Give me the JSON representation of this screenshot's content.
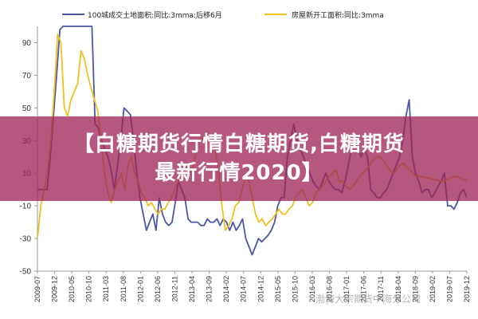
{
  "banner": {
    "line1": "【白糖期货行情白糖期货,白糖期货",
    "line2": "最新行情2020】"
  },
  "watermark": "渤海大宗期货中海分公司",
  "colors": {
    "series1": "#4a56a6",
    "series2": "#f0c020",
    "axis": "#999999",
    "banner": "#a0285a"
  },
  "chart_data": {
    "type": "line",
    "title": "",
    "xlabel": "",
    "ylabel": "",
    "ylim": [
      -50,
      100
    ],
    "yticks": [
      90,
      70,
      50,
      30,
      10,
      -10,
      -30,
      -50
    ],
    "grid": false,
    "legend_position": "top",
    "x_tick_labels": [
      "2009-07",
      "2009-12",
      "2010-05",
      "2010-10",
      "2011-03",
      "2011-08",
      "2012-01",
      "2012-06",
      "2012-11",
      "2013-04",
      "2013-09",
      "2014-02",
      "2014-07",
      "2014-12",
      "2015-05",
      "2015-10",
      "2016-03",
      "2016-08",
      "2017-01",
      "2017-06",
      "2017-11",
      "2018-04",
      "2018-09",
      "2019-02",
      "2019-07",
      "2019-12"
    ],
    "series": [
      {
        "name": "100城成交土地面积:同比:3mma:后移6月",
        "color": "#4a56a6",
        "values": [
          0,
          0,
          0,
          0,
          20,
          45,
          70,
          98,
          100,
          100,
          100,
          100,
          100,
          100,
          100,
          100,
          100,
          100,
          40,
          38,
          30,
          25,
          20,
          12,
          0,
          15,
          30,
          50,
          48,
          46,
          30,
          10,
          -5,
          -15,
          -25,
          -20,
          -15,
          -25,
          -5,
          -15,
          -20,
          -22,
          -20,
          -8,
          5,
          0,
          -5,
          -18,
          -20,
          -20,
          -20,
          -22,
          -22,
          -18,
          -20,
          -20,
          -18,
          -22,
          -18,
          -20,
          -25,
          -20,
          -25,
          -22,
          -18,
          -30,
          -35,
          -40,
          -35,
          -30,
          -32,
          -30,
          -28,
          -25,
          -20,
          -10,
          -5,
          -5,
          20,
          30,
          40,
          30,
          25,
          20,
          15,
          10,
          5,
          2,
          0,
          5,
          10,
          5,
          2,
          0,
          0,
          -2,
          5,
          15,
          25,
          30,
          25,
          20,
          25,
          20,
          0,
          -2,
          -5,
          -5,
          -2,
          0,
          5,
          10,
          15,
          20,
          30,
          45,
          55,
          20,
          10,
          5,
          -2,
          0,
          0,
          -5,
          -2,
          2,
          5,
          10,
          -10,
          -10,
          -12,
          -8,
          -2,
          0,
          -5
        ]
      },
      {
        "name": "房屋新开工面积:同比:3mma",
        "color": "#f0c020",
        "values": [
          -30,
          -10,
          0,
          10,
          30,
          60,
          95,
          90,
          50,
          45,
          55,
          60,
          65,
          85,
          80,
          70,
          62,
          55,
          48,
          30,
          10,
          -2,
          -8,
          0,
          5,
          10,
          0,
          15,
          20,
          10,
          5,
          -2,
          -5,
          -10,
          -8,
          -12,
          -15,
          -12,
          -12,
          -8,
          -5,
          0,
          5,
          10,
          15,
          12,
          10,
          20,
          30,
          32,
          28,
          30,
          28,
          25,
          10,
          -10,
          -25,
          -22,
          -18,
          -10,
          -8,
          0,
          8,
          5,
          -5,
          -15,
          -20,
          -18,
          -22,
          -20,
          -18,
          -15,
          -12,
          -15,
          -15,
          -12,
          -10,
          -5,
          -2,
          0,
          -5,
          -10,
          -8,
          -2,
          0,
          2,
          5,
          8,
          10,
          12,
          5,
          5,
          2,
          0,
          2,
          5,
          8,
          10,
          12,
          15,
          18,
          20,
          20,
          18,
          15,
          12,
          10,
          12,
          15,
          16,
          14,
          12,
          10,
          8,
          8,
          8,
          7,
          7,
          6,
          6,
          5,
          5,
          6,
          7,
          8,
          8,
          7,
          6,
          6
        ]
      }
    ]
  }
}
